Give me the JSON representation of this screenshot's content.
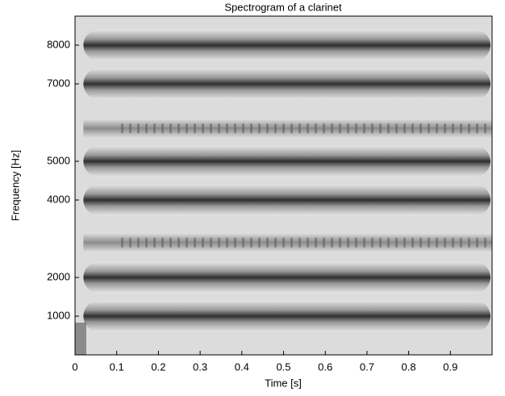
{
  "chart_data": {
    "type": "spectrogram",
    "title": "Spectrogram of a clarinet",
    "x_label": "Time [s]",
    "y_label": "Frequency [Hz]",
    "xlim": [
      0,
      1
    ],
    "xticks": [
      0,
      0.1,
      0.2,
      0.3,
      0.4,
      0.5,
      0.6,
      0.7,
      0.8,
      0.9
    ],
    "ylim": [
      0,
      8750
    ],
    "yticks": [
      1000,
      2000,
      4000,
      5000,
      7000,
      8000
    ],
    "colormap": "gray",
    "dark_bands": [
      1000,
      2000,
      4000,
      5000,
      7000,
      8000
    ],
    "mottled_bands": [
      2900,
      5850
    ]
  }
}
